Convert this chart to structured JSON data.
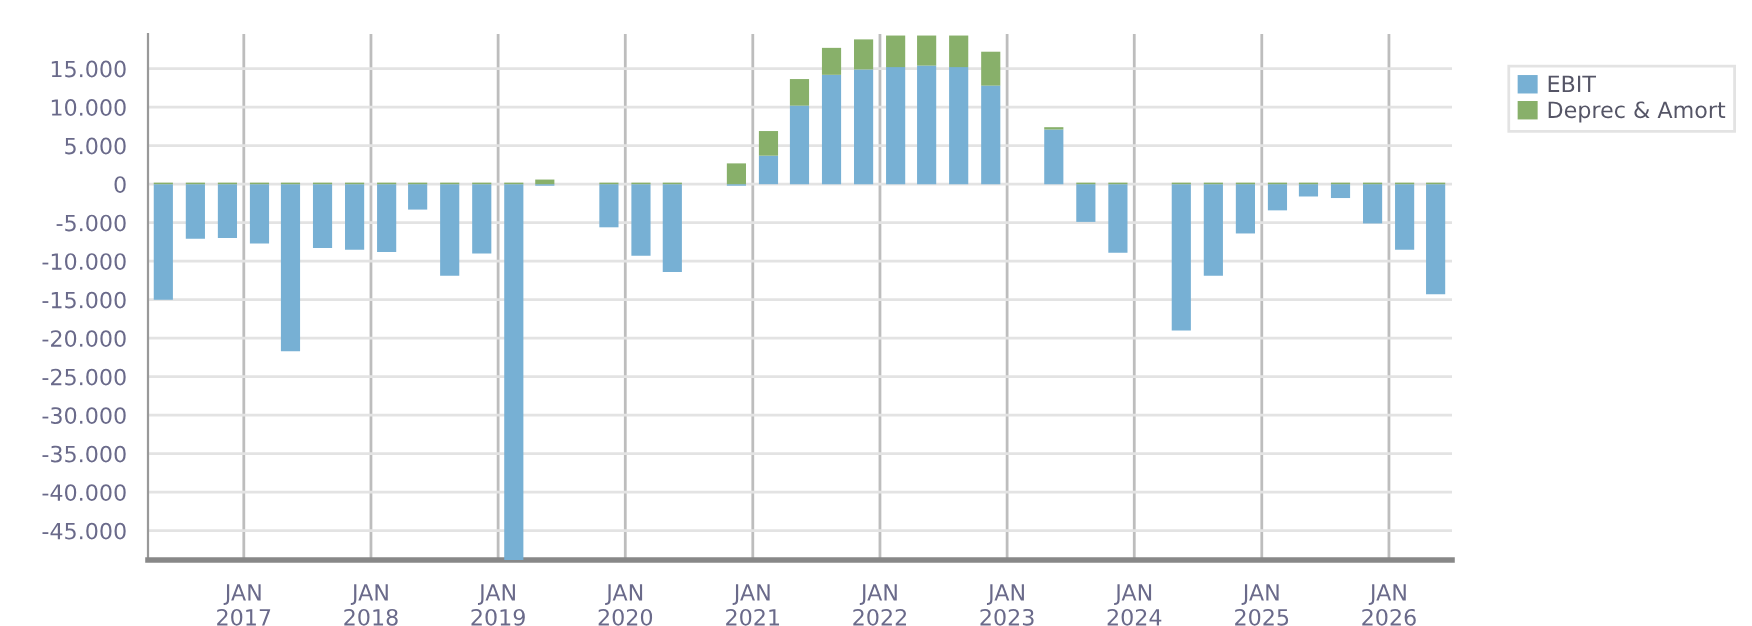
{
  "chart_data": {
    "type": "bar",
    "stacked": true,
    "x": [
      "2016-05-15",
      "2016-08-15",
      "2016-11-15",
      "2017-02-15",
      "2017-05-15",
      "2017-08-15",
      "2017-11-15",
      "2018-02-15",
      "2018-05-15",
      "2018-08-15",
      "2018-11-15",
      "2019-02-15",
      "2019-05-15",
      "2019-08-15",
      "2019-11-15",
      "2020-02-15",
      "2020-05-15",
      "2020-08-15",
      "2020-11-15",
      "2021-02-15",
      "2021-05-15",
      "2021-08-15",
      "2021-11-15",
      "2022-02-15",
      "2022-05-15",
      "2022-08-15",
      "2022-11-15",
      "2023-02-15",
      "2023-05-15",
      "2023-08-15",
      "2023-11-15",
      "2024-02-15",
      "2024-05-15",
      "2024-08-15",
      "2024-11-15",
      "2025-02-15",
      "2025-05-15",
      "2025-08-15",
      "2025-11-15",
      "2026-02-15",
      "2026-05-15"
    ],
    "series": [
      {
        "name": "EBIT",
        "color": "#77b0d4",
        "values": [
          -15000,
          -7100,
          -7000,
          -7700,
          -21700,
          -8300,
          -8500,
          -8800,
          -3300,
          -11900,
          -9000,
          -48800,
          -200,
          null,
          -5600,
          -9300,
          -11400,
          null,
          -200,
          3700,
          10200,
          14200,
          14900,
          15200,
          15400,
          15200,
          12800,
          null,
          7100,
          -4900,
          -8900,
          null,
          -19000,
          -11900,
          -6400,
          -3400,
          -1600,
          -1800,
          -5100,
          -8500,
          -14300
        ]
      },
      {
        "name": "Deprec & Amort",
        "color": "#88b06a",
        "values": [
          200,
          200,
          200,
          200,
          200,
          200,
          200,
          200,
          200,
          200,
          200,
          200,
          600,
          null,
          200,
          200,
          200,
          null,
          2700,
          3200,
          3450,
          3500,
          3900,
          4100,
          3900,
          4100,
          4400,
          null,
          300,
          200,
          200,
          null,
          200,
          200,
          200,
          200,
          200,
          200,
          200,
          200,
          200
        ]
      }
    ],
    "xlim": [
      "2016-04-01",
      "2026-07-01"
    ],
    "xticks": [
      {
        "value": "2017-01-01",
        "label": "JAN\n2017"
      },
      {
        "value": "2018-01-01",
        "label": "JAN\n2018"
      },
      {
        "value": "2019-01-01",
        "label": "JAN\n2019"
      },
      {
        "value": "2020-01-01",
        "label": "JAN\n2020"
      },
      {
        "value": "2021-01-01",
        "label": "JAN\n2021"
      },
      {
        "value": "2022-01-01",
        "label": "JAN\n2022"
      },
      {
        "value": "2023-01-01",
        "label": "JAN\n2023"
      },
      {
        "value": "2024-01-01",
        "label": "JAN\n2024"
      },
      {
        "value": "2025-01-01",
        "label": "JAN\n2025"
      },
      {
        "value": "2026-01-01",
        "label": "JAN\n2026"
      }
    ],
    "ylim": [
      -48800,
      19500
    ],
    "yticks": [
      {
        "value": -45000,
        "label": "-45.000"
      },
      {
        "value": -40000,
        "label": "-40.000"
      },
      {
        "value": -35000,
        "label": "-35.000"
      },
      {
        "value": -30000,
        "label": "-30.000"
      },
      {
        "value": -25000,
        "label": "-25.000"
      },
      {
        "value": -20000,
        "label": "-20.000"
      },
      {
        "value": -15000,
        "label": "-15.000"
      },
      {
        "value": -10000,
        "label": "-10.000"
      },
      {
        "value": -5000,
        "label": "-5.000"
      },
      {
        "value": 0,
        "label": "0"
      },
      {
        "value": 5000,
        "label": "5.000"
      },
      {
        "value": 10000,
        "label": "10.000"
      },
      {
        "value": 15000,
        "label": "15.000"
      }
    ],
    "grid": true,
    "legend": "top right"
  }
}
